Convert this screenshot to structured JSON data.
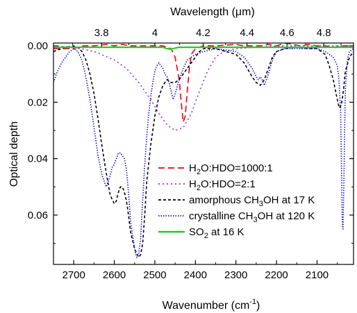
{
  "chart_data": {
    "type": "line",
    "xlabel": "Wavenumber (cm",
    "xlabel_sup": "-1",
    "xlabel_end": ")",
    "ylabel": "Optical depth",
    "top_xlabel": "Wavelength (",
    "top_xlabel_mu": "μ",
    "top_xlabel_end": "m)",
    "xlim": [
      2750,
      2010
    ],
    "ylim": [
      -0.001,
      0.0775
    ],
    "y_inverted": true,
    "x_ticks": [
      2700,
      2600,
      2500,
      2400,
      2300,
      2200,
      2100
    ],
    "x_tick_labels": [
      "2700",
      "2600",
      "2500",
      "2400",
      "2300",
      "2200",
      "2100"
    ],
    "y_ticks": [
      0.0,
      0.02,
      0.04,
      0.06
    ],
    "y_tick_labels": [
      "0.00",
      "0.02",
      "0.04",
      "0.06"
    ],
    "top_ticks_um": [
      3.8,
      4.0,
      4.2,
      4.4,
      4.6,
      4.8
    ],
    "top_tick_labels": [
      "3.8",
      "4",
      "4.2",
      "4.4",
      "4.6",
      "4.8"
    ],
    "legend_position": "center-right",
    "series": [
      {
        "name": "H2O:HDO=1000:1",
        "legend_parts": [
          "H",
          "2",
          "O:HDO=1000:1"
        ],
        "color": "#e8000b",
        "dash": "9,5",
        "x": [
          2750,
          2700,
          2680,
          2650,
          2620,
          2600,
          2580,
          2560,
          2540,
          2520,
          2500,
          2480,
          2460,
          2450,
          2440,
          2435,
          2430,
          2425,
          2420,
          2415,
          2410,
          2400,
          2380,
          2350,
          2300,
          2280,
          2260,
          2240,
          2220,
          2200,
          2180,
          2160,
          2140,
          2120,
          2100,
          2080,
          2060,
          2040,
          2020,
          2010
        ],
        "y": [
          0.001,
          0.001,
          0.0,
          0.0,
          -0.0005,
          0.0,
          -0.0005,
          0.0,
          0.0,
          0.0,
          0.0,
          0.0,
          0.001,
          0.004,
          0.012,
          0.02,
          0.027,
          0.025,
          0.016,
          0.008,
          0.003,
          0.001,
          0.0,
          0.0,
          -0.0005,
          0.0,
          0.0,
          0.0,
          -0.0005,
          0.0,
          -0.001,
          -0.0005,
          0.0,
          -0.0005,
          0.0,
          0.0,
          0.0005,
          0.0,
          0.0,
          0.0
        ]
      },
      {
        "name": "H2O:HDO=2:1",
        "legend_parts": [
          "H",
          "2",
          "O:HDO=2:1"
        ],
        "color": "#a020f0",
        "dash": "2,4",
        "x": [
          2750,
          2700,
          2650,
          2600,
          2570,
          2540,
          2510,
          2490,
          2470,
          2450,
          2430,
          2410,
          2390,
          2370,
          2350,
          2330,
          2300,
          2250,
          2200,
          2150,
          2100,
          2050,
          2010
        ],
        "y": [
          0.0,
          0.0005,
          0.002,
          0.005,
          0.008,
          0.013,
          0.019,
          0.024,
          0.028,
          0.03,
          0.029,
          0.024,
          0.016,
          0.009,
          0.004,
          0.002,
          0.001,
          0.0005,
          0.0,
          0.0,
          0.0,
          0.0,
          0.0
        ]
      },
      {
        "name": "amorphous CH3OH at 17 K",
        "legend_parts": [
          "amorphous CH",
          "3",
          "OH at 17 K"
        ],
        "color": "#000000",
        "dash": "4,3",
        "x": [
          2750,
          2720,
          2700,
          2690,
          2680,
          2670,
          2660,
          2650,
          2640,
          2630,
          2620,
          2610,
          2600,
          2595,
          2590,
          2585,
          2580,
          2575,
          2570,
          2565,
          2560,
          2550,
          2540,
          2535,
          2530,
          2525,
          2520,
          2510,
          2500,
          2490,
          2480,
          2470,
          2460,
          2450,
          2440,
          2430,
          2420,
          2410,
          2400,
          2390,
          2380,
          2350,
          2300,
          2280,
          2260,
          2250,
          2240,
          2230,
          2220,
          2210,
          2200,
          2180,
          2150,
          2120,
          2100,
          2080,
          2070,
          2060,
          2050,
          2045,
          2040,
          2035,
          2030,
          2020,
          2010
        ],
        "y": [
          0.002,
          0.0005,
          0.0,
          0.0005,
          0.002,
          0.005,
          0.01,
          0.017,
          0.026,
          0.036,
          0.045,
          0.053,
          0.056,
          0.055,
          0.052,
          0.05,
          0.05,
          0.052,
          0.055,
          0.06,
          0.066,
          0.072,
          0.075,
          0.074,
          0.07,
          0.06,
          0.048,
          0.035,
          0.025,
          0.018,
          0.014,
          0.012,
          0.013,
          0.013,
          0.012,
          0.01,
          0.008,
          0.006,
          0.004,
          0.002,
          0.001,
          0.001,
          0.003,
          0.006,
          0.011,
          0.013,
          0.014,
          0.012,
          0.008,
          0.004,
          0.002,
          0.001,
          0.0005,
          0.001,
          0.001,
          0.003,
          0.007,
          0.012,
          0.019,
          0.022,
          0.021,
          0.016,
          0.009,
          0.004,
          0.002
        ]
      },
      {
        "name": "crystalline CH3OH at 120 K",
        "legend_parts": [
          "crystalline CH",
          "3",
          "OH at 120 K"
        ],
        "color": "#1010d0",
        "dash": "1.5,2",
        "x": [
          2750,
          2740,
          2730,
          2720,
          2710,
          2700,
          2690,
          2680,
          2670,
          2660,
          2650,
          2640,
          2630,
          2620,
          2610,
          2605,
          2600,
          2595,
          2590,
          2585,
          2580,
          2575,
          2570,
          2565,
          2560,
          2550,
          2545,
          2540,
          2535,
          2530,
          2525,
          2520,
          2515,
          2510,
          2505,
          2500,
          2495,
          2490,
          2485,
          2480,
          2475,
          2470,
          2465,
          2460,
          2455,
          2450,
          2440,
          2430,
          2420,
          2400,
          2380,
          2350,
          2300,
          2280,
          2260,
          2250,
          2245,
          2240,
          2235,
          2230,
          2220,
          2210,
          2200,
          2180,
          2150,
          2100,
          2080,
          2060,
          2050,
          2046,
          2042,
          2040,
          2038,
          2036,
          2034,
          2032,
          2030,
          2025,
          2020,
          2010
        ],
        "y": [
          0.013,
          0.009,
          0.006,
          0.004,
          0.002,
          0.001,
          0.002,
          0.005,
          0.011,
          0.019,
          0.029,
          0.039,
          0.046,
          0.05,
          0.046,
          0.043,
          0.042,
          0.04,
          0.038,
          0.038,
          0.039,
          0.04,
          0.044,
          0.052,
          0.062,
          0.072,
          0.075,
          0.074,
          0.068,
          0.055,
          0.042,
          0.032,
          0.024,
          0.018,
          0.013,
          0.009,
          0.007,
          0.006,
          0.007,
          0.008,
          0.01,
          0.011,
          0.013,
          0.016,
          0.019,
          0.017,
          0.012,
          0.008,
          0.005,
          0.003,
          0.002,
          0.001,
          0.002,
          0.004,
          0.008,
          0.011,
          0.012,
          0.011,
          0.012,
          0.014,
          0.01,
          0.005,
          0.002,
          0.001,
          0.001,
          0.001,
          0.002,
          0.004,
          0.007,
          0.012,
          0.022,
          0.04,
          0.062,
          0.065,
          0.05,
          0.03,
          0.015,
          0.005,
          0.002,
          0.001
        ]
      },
      {
        "name": "SO2 at 16 K",
        "legend_parts": [
          "SO",
          "2",
          " at 16 K"
        ],
        "color": "#22cc22",
        "dash": "",
        "x": [
          2750,
          2700,
          2650,
          2600,
          2550,
          2500,
          2480,
          2470,
          2460,
          2450,
          2440,
          2430,
          2400,
          2350,
          2300,
          2250,
          2200,
          2150,
          2100,
          2050,
          2010
        ],
        "y": [
          0.0005,
          0.0005,
          0.0005,
          0.0005,
          0.0005,
          0.0005,
          0.0005,
          0.001,
          0.0012,
          0.0008,
          0.0005,
          0.0005,
          0.0005,
          0.0005,
          0.0005,
          0.0005,
          0.0005,
          0.0005,
          0.0005,
          0.0005,
          0.0005
        ]
      }
    ]
  }
}
